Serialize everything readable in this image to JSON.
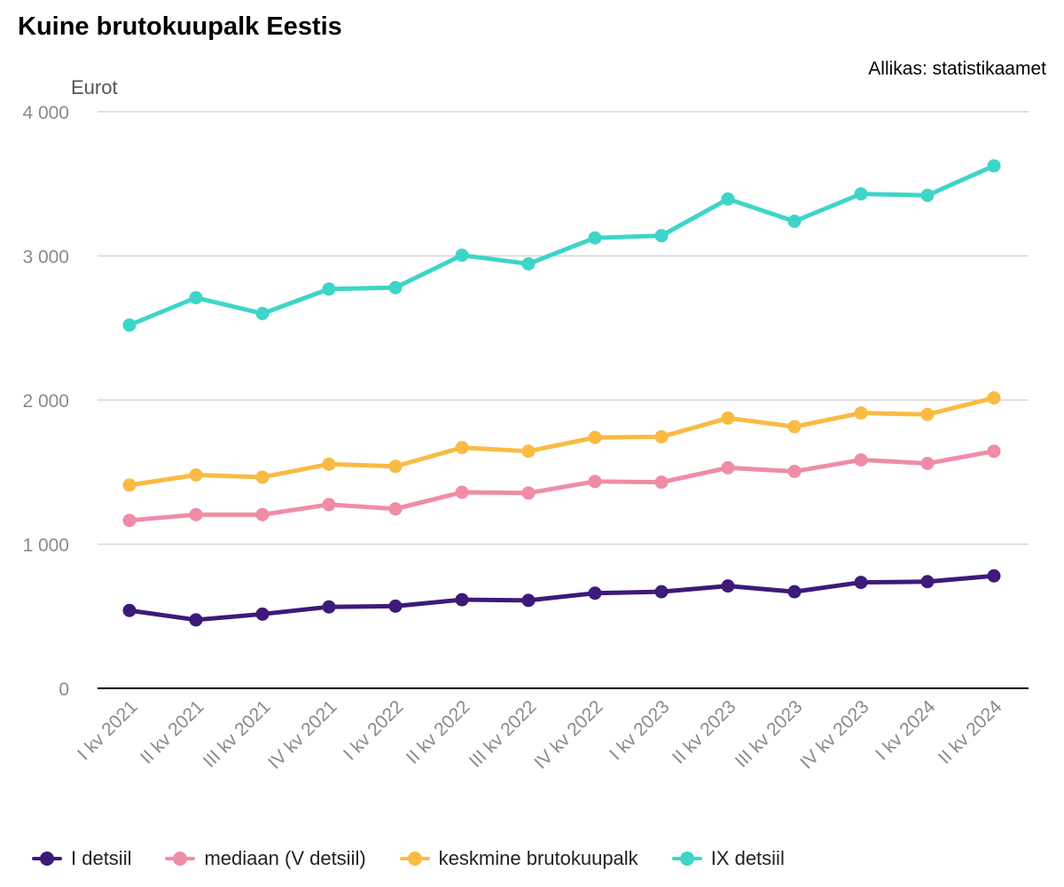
{
  "title": "Kuine brutokuupalk Eestis",
  "source": "Allikas: statistikaamet",
  "chart_data": {
    "type": "line",
    "title": "Kuine brutokuupalk Eestis",
    "ylabel": "Eurot",
    "xlabel": "",
    "ylim": [
      0,
      4000
    ],
    "yticks": [
      0,
      1000,
      2000,
      3000,
      4000
    ],
    "ytick_labels": [
      "0",
      "1 000",
      "2 000",
      "3 000",
      "4 000"
    ],
    "grid": true,
    "legend_position": "bottom",
    "categories": [
      "I kv 2021",
      "II kv 2021",
      "III kv 2021",
      "IV kv 2021",
      "I kv 2022",
      "II kv 2022",
      "III kv 2022",
      "IV kv 2022",
      "I kv 2023",
      "II kv 2023",
      "III kv 2023",
      "IV kv 2023",
      "I kv 2024",
      "II kv 2024"
    ],
    "series": [
      {
        "name": "I detsiil",
        "color": "#3d1a7a",
        "values": [
          540,
          475,
          515,
          565,
          570,
          615,
          610,
          660,
          670,
          710,
          670,
          735,
          740,
          780
        ]
      },
      {
        "name": "mediaan (V detsiil)",
        "color": "#f08ca6",
        "values": [
          1165,
          1205,
          1205,
          1275,
          1245,
          1360,
          1355,
          1435,
          1430,
          1530,
          1505,
          1585,
          1560,
          1645
        ]
      },
      {
        "name": "keskmine brutokuupalk",
        "color": "#f9bb42",
        "values": [
          1410,
          1480,
          1465,
          1555,
          1540,
          1670,
          1645,
          1740,
          1745,
          1875,
          1815,
          1910,
          1900,
          2015
        ]
      },
      {
        "name": "IX detsiil",
        "color": "#3dd5c8",
        "values": [
          2520,
          2710,
          2600,
          2770,
          2780,
          3005,
          2945,
          3125,
          3140,
          3395,
          3240,
          3430,
          3420,
          3625
        ]
      }
    ]
  }
}
